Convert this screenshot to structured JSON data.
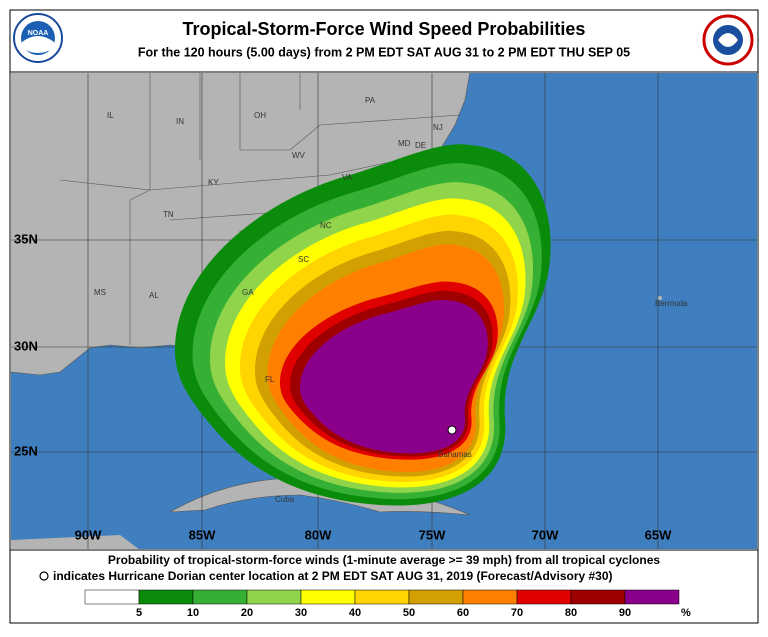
{
  "header": {
    "title": "Tropical-Storm-Force Wind Speed Probabilities",
    "subtitle": "For the 120 hours (5.00 days) from 2 PM EDT SAT AUG 31 to 2 PM EDT THU SEP 05"
  },
  "map": {
    "state_labels": [
      "IL",
      "IN",
      "OH",
      "PA",
      "NJ",
      "MD",
      "DE",
      "WV",
      "VA",
      "KY",
      "TN",
      "NC",
      "SC",
      "GA",
      "AL",
      "MS",
      "FL"
    ],
    "place_labels": [
      "Bermuda",
      "Bahamas",
      "Cuba"
    ],
    "latitude_labels": [
      "35N",
      "30N",
      "25N"
    ],
    "longitude_labels": [
      "90W",
      "85W",
      "80W",
      "75W",
      "70W",
      "65W"
    ]
  },
  "footer": {
    "lines": [
      "Probability of tropical-storm-force winds (1-minute average >= 39 mph) from all tropical cyclones",
      "indicates Hurricane Dorian center location at 2 PM EDT SAT AUG 31, 2019 (Forecast/Advisory #30)"
    ]
  },
  "legend": {
    "colors": [
      "#ffffff",
      "#0a8c0a",
      "#35b035",
      "#8fd44a",
      "#ffff00",
      "#ffd400",
      "#d2a000",
      "#ff8000",
      "#e00000",
      "#9e0000",
      "#8b008b"
    ],
    "labels": [
      5,
      10,
      20,
      30,
      40,
      50,
      60,
      70,
      80,
      90
    ],
    "unit": "%"
  }
}
